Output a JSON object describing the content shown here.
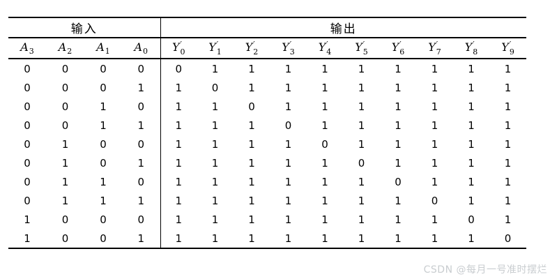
{
  "table": {
    "group_headers": {
      "input": "输入",
      "output": "输出"
    },
    "input_columns": [
      {
        "base": "A",
        "sub": "3"
      },
      {
        "base": "A",
        "sub": "2"
      },
      {
        "base": "A",
        "sub": "1"
      },
      {
        "base": "A",
        "sub": "0"
      }
    ],
    "output_columns": [
      {
        "base": "Y",
        "sub": "0",
        "prime": "′"
      },
      {
        "base": "Y",
        "sub": "1",
        "prime": "′"
      },
      {
        "base": "Y",
        "sub": "2",
        "prime": "′"
      },
      {
        "base": "Y",
        "sub": "3",
        "prime": "′"
      },
      {
        "base": "Y",
        "sub": "4",
        "prime": "′"
      },
      {
        "base": "Y",
        "sub": "5",
        "prime": "′"
      },
      {
        "base": "Y",
        "sub": "6",
        "prime": "′"
      },
      {
        "base": "Y",
        "sub": "7",
        "prime": "′"
      },
      {
        "base": "Y",
        "sub": "8",
        "prime": "′"
      },
      {
        "base": "Y",
        "sub": "9",
        "prime": "′"
      }
    ],
    "rows": [
      {
        "inputs": [
          "0",
          "0",
          "0",
          "0"
        ],
        "outputs": [
          "0",
          "1",
          "1",
          "1",
          "1",
          "1",
          "1",
          "1",
          "1",
          "1"
        ]
      },
      {
        "inputs": [
          "0",
          "0",
          "0",
          "1"
        ],
        "outputs": [
          "1",
          "0",
          "1",
          "1",
          "1",
          "1",
          "1",
          "1",
          "1",
          "1"
        ]
      },
      {
        "inputs": [
          "0",
          "0",
          "1",
          "0"
        ],
        "outputs": [
          "1",
          "1",
          "0",
          "1",
          "1",
          "1",
          "1",
          "1",
          "1",
          "1"
        ]
      },
      {
        "inputs": [
          "0",
          "0",
          "1",
          "1"
        ],
        "outputs": [
          "1",
          "1",
          "1",
          "0",
          "1",
          "1",
          "1",
          "1",
          "1",
          "1"
        ]
      },
      {
        "inputs": [
          "0",
          "1",
          "0",
          "0"
        ],
        "outputs": [
          "1",
          "1",
          "1",
          "1",
          "0",
          "1",
          "1",
          "1",
          "1",
          "1"
        ]
      },
      {
        "inputs": [
          "0",
          "1",
          "0",
          "1"
        ],
        "outputs": [
          "1",
          "1",
          "1",
          "1",
          "1",
          "0",
          "1",
          "1",
          "1",
          "1"
        ]
      },
      {
        "inputs": [
          "0",
          "1",
          "1",
          "0"
        ],
        "outputs": [
          "1",
          "1",
          "1",
          "1",
          "1",
          "1",
          "0",
          "1",
          "1",
          "1"
        ]
      },
      {
        "inputs": [
          "0",
          "1",
          "1",
          "1"
        ],
        "outputs": [
          "1",
          "1",
          "1",
          "1",
          "1",
          "1",
          "1",
          "0",
          "1",
          "1"
        ]
      },
      {
        "inputs": [
          "1",
          "0",
          "0",
          "0"
        ],
        "outputs": [
          "1",
          "1",
          "1",
          "1",
          "1",
          "1",
          "1",
          "1",
          "0",
          "1"
        ]
      },
      {
        "inputs": [
          "1",
          "0",
          "0",
          "1"
        ],
        "outputs": [
          "1",
          "1",
          "1",
          "1",
          "1",
          "1",
          "1",
          "1",
          "1",
          "0"
        ]
      }
    ]
  },
  "watermark": {
    "text": "CSDN @每月一号准时摆烂",
    "color": "#c9cdd0"
  }
}
